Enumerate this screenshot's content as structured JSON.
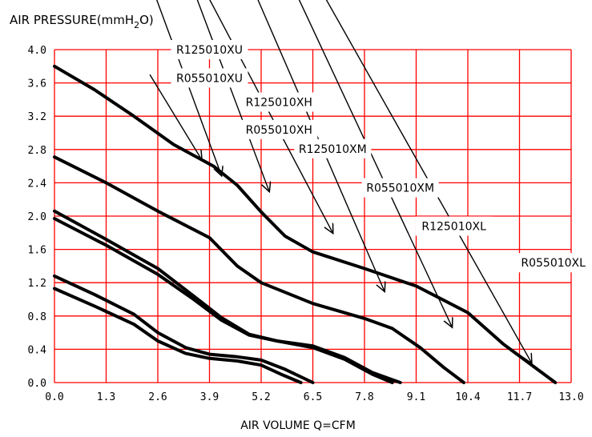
{
  "chart_data": {
    "type": "line",
    "y_title_main": "AIR PRESSURE(mmH",
    "y_title_sub": "2",
    "y_title_end": "O)",
    "xlabel": "AIR VOLUME Q=CFM",
    "xlim": [
      0.0,
      13.0
    ],
    "ylim": [
      0.0,
      4.0
    ],
    "x_ticks": [
      "0.0",
      "1.3",
      "2.6",
      "3.9",
      "5.2",
      "6.5",
      "7.8",
      "9.1",
      "10.4",
      "11.7",
      "13.0"
    ],
    "x_tick_values": [
      0.0,
      1.3,
      2.6,
      3.9,
      5.2,
      6.5,
      7.8,
      9.1,
      10.4,
      11.7,
      13.0
    ],
    "y_ticks": [
      "0.0",
      "0.4",
      "0.8",
      "1.2",
      "1.6",
      "2.0",
      "2.4",
      "2.8",
      "3.2",
      "3.6",
      "4.0"
    ],
    "y_tick_values": [
      0.0,
      0.4,
      0.8,
      1.2,
      1.6,
      2.0,
      2.4,
      2.8,
      3.2,
      3.6,
      4.0
    ],
    "grid": true,
    "grid_color": "#ff0000",
    "line_color": "#000000",
    "series": [
      {
        "points": [
          [
            0.0,
            3.8
          ],
          [
            1.0,
            3.52
          ],
          [
            2.0,
            3.2
          ],
          [
            3.0,
            2.86
          ],
          [
            4.0,
            2.6
          ],
          [
            4.6,
            2.37
          ],
          [
            5.2,
            2.05
          ],
          [
            5.8,
            1.76
          ],
          [
            6.5,
            1.57
          ],
          [
            7.8,
            1.37
          ],
          [
            9.1,
            1.16
          ],
          [
            10.4,
            0.84
          ],
          [
            11.3,
            0.46
          ],
          [
            12.6,
            0.0
          ]
        ]
      },
      {
        "points": [
          [
            0.0,
            2.71
          ],
          [
            1.3,
            2.4
          ],
          [
            2.6,
            2.06
          ],
          [
            3.9,
            1.74
          ],
          [
            4.6,
            1.4
          ],
          [
            5.2,
            1.2
          ],
          [
            6.5,
            0.95
          ],
          [
            7.8,
            0.77
          ],
          [
            8.5,
            0.65
          ],
          [
            9.2,
            0.42
          ],
          [
            9.8,
            0.18
          ],
          [
            10.3,
            0.0
          ]
        ]
      },
      {
        "points": [
          [
            0.0,
            2.06
          ],
          [
            1.3,
            1.72
          ],
          [
            2.6,
            1.37
          ],
          [
            3.5,
            1.04
          ],
          [
            4.2,
            0.78
          ],
          [
            4.9,
            0.58
          ],
          [
            5.6,
            0.5
          ],
          [
            6.5,
            0.42
          ],
          [
            7.3,
            0.28
          ],
          [
            8.0,
            0.1
          ],
          [
            8.5,
            0.0
          ]
        ]
      },
      {
        "points": [
          [
            0.0,
            1.97
          ],
          [
            1.3,
            1.65
          ],
          [
            2.6,
            1.3
          ],
          [
            3.5,
            1.0
          ],
          [
            4.2,
            0.75
          ],
          [
            4.9,
            0.57
          ],
          [
            5.6,
            0.5
          ],
          [
            6.5,
            0.44
          ],
          [
            7.3,
            0.3
          ],
          [
            8.0,
            0.12
          ],
          [
            8.7,
            0.0
          ]
        ]
      },
      {
        "points": [
          [
            0.0,
            1.28
          ],
          [
            1.0,
            1.06
          ],
          [
            2.0,
            0.82
          ],
          [
            2.6,
            0.6
          ],
          [
            3.3,
            0.42
          ],
          [
            3.9,
            0.34
          ],
          [
            4.6,
            0.31
          ],
          [
            5.2,
            0.27
          ],
          [
            5.8,
            0.16
          ],
          [
            6.5,
            0.0
          ]
        ]
      },
      {
        "points": [
          [
            0.0,
            1.13
          ],
          [
            1.0,
            0.92
          ],
          [
            2.0,
            0.7
          ],
          [
            2.6,
            0.5
          ],
          [
            3.3,
            0.35
          ],
          [
            3.9,
            0.29
          ],
          [
            4.6,
            0.26
          ],
          [
            5.2,
            0.21
          ],
          [
            5.7,
            0.1
          ],
          [
            6.2,
            0.0
          ]
        ]
      }
    ],
    "annotations": [
      {
        "text": "R125010XU",
        "x": 3.9,
        "y": 4.0
      },
      {
        "text": "R055010XU",
        "x": 3.9,
        "y": 3.66
      },
      {
        "text": "R125010XH",
        "x": 5.65,
        "y": 3.37
      },
      {
        "text": "R055010XH",
        "x": 5.65,
        "y": 3.04
      },
      {
        "text": "R125010XM",
        "x": 7.0,
        "y": 2.81
      },
      {
        "text": "R055010XM",
        "x": 8.7,
        "y": 2.34
      },
      {
        "text": "R125010XL",
        "x": 10.05,
        "y": 1.88
      },
      {
        "text": "R055010XL",
        "x": 12.55,
        "y": 1.44
      }
    ],
    "arrows": [
      {
        "from": [
          2.4,
          3.7
        ],
        "to": [
          3.7,
          2.68
        ]
      },
      {
        "from": [
          1.8,
          4.2
        ],
        "to": [
          5.6,
          2.49
        ]
      },
      {
        "from": [
          2.1,
          5.4
        ],
        "to": [
          6.5,
          2.3
        ]
      },
      {
        "from": [
          2.8,
          7.0
        ],
        "to": [
          5.6,
          1.8
        ]
      },
      {
        "from": [
          3.3,
          8.3
        ],
        "to": [
          6.6,
          1.1
        ]
      },
      {
        "from": [
          4.1,
          10.0
        ],
        "to": [
          6.7,
          0.67
        ]
      },
      {
        "from": [
          5.3,
          12.0
        ],
        "to": [
          5.9,
          0.24
        ]
      }
    ]
  }
}
